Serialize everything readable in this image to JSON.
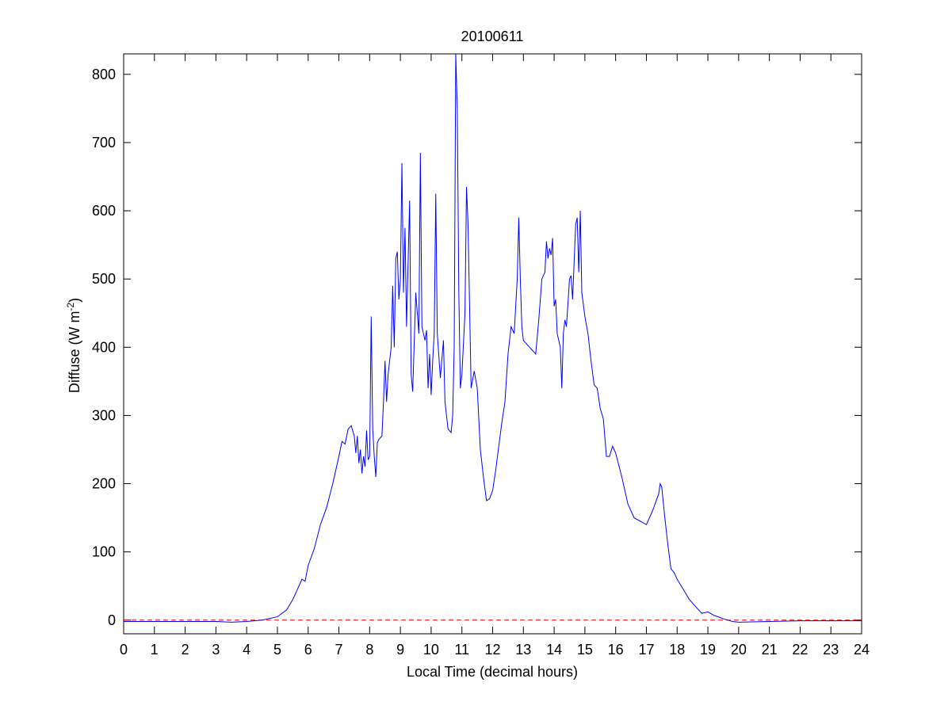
{
  "chart_data": {
    "type": "line",
    "title": "20100611",
    "xlabel": "Local Time (decimal hours)",
    "ylabel": {
      "text": "Diffuse (W m",
      "superscript": "-2",
      "suffix": ")"
    },
    "xlim": [
      0,
      24
    ],
    "ylim": [
      -20,
      830
    ],
    "xticks": [
      0,
      1,
      2,
      3,
      4,
      5,
      6,
      7,
      8,
      9,
      10,
      11,
      12,
      13,
      14,
      15,
      16,
      17,
      18,
      19,
      20,
      21,
      22,
      23,
      24
    ],
    "yticks": [
      0,
      100,
      200,
      300,
      400,
      500,
      600,
      700,
      800
    ],
    "reference_line": {
      "value": 0,
      "color": "#ff0000"
    },
    "x": [
      0,
      1,
      2,
      3,
      3.5,
      4,
      4.5,
      5,
      5.3,
      5.5,
      5.7,
      5.8,
      5.9,
      6,
      6.2,
      6.4,
      6.6,
      6.8,
      7,
      7.1,
      7.2,
      7.3,
      7.4,
      7.5,
      7.55,
      7.6,
      7.65,
      7.7,
      7.75,
      7.8,
      7.85,
      7.9,
      7.95,
      8,
      8.05,
      8.1,
      8.15,
      8.2,
      8.25,
      8.3,
      8.4,
      8.45,
      8.5,
      8.55,
      8.6,
      8.7,
      8.75,
      8.8,
      8.85,
      8.9,
      8.95,
      9,
      9.05,
      9.1,
      9.15,
      9.2,
      9.3,
      9.35,
      9.4,
      9.5,
      9.6,
      9.65,
      9.7,
      9.8,
      9.85,
      9.9,
      9.95,
      10,
      10.05,
      10.1,
      10.15,
      10.2,
      10.3,
      10.4,
      10.45,
      10.55,
      10.65,
      10.7,
      10.75,
      10.8,
      10.85,
      10.9,
      10.95,
      11,
      11.1,
      11.15,
      11.2,
      11.3,
      11.4,
      11.5,
      11.6,
      11.7,
      11.8,
      11.9,
      12,
      12.1,
      12.3,
      12.4,
      12.5,
      12.6,
      12.7,
      12.8,
      12.85,
      12.9,
      12.95,
      13,
      13.2,
      13.4,
      13.5,
      13.6,
      13.7,
      13.75,
      13.8,
      13.85,
      13.9,
      13.95,
      14,
      14.05,
      14.1,
      14.2,
      14.25,
      14.3,
      14.35,
      14.4,
      14.5,
      14.55,
      14.6,
      14.7,
      14.75,
      14.8,
      14.85,
      14.9,
      15,
      15.1,
      15.2,
      15.3,
      15.4,
      15.5,
      15.6,
      15.7,
      15.8,
      15.9,
      16,
      16.2,
      16.4,
      16.6,
      16.8,
      17,
      17.2,
      17.4,
      17.45,
      17.5,
      17.6,
      17.7,
      17.8,
      17.9,
      18,
      18.2,
      18.4,
      18.6,
      18.8,
      19,
      19.2,
      19.5,
      19.8,
      20,
      21,
      22,
      23,
      24
    ],
    "series": [
      {
        "color": "#0000ff",
        "values": [
          -2,
          -2,
          -2,
          -2,
          -3,
          -2,
          0,
          5,
          15,
          30,
          50,
          60,
          57,
          80,
          105,
          140,
          165,
          200,
          240,
          262,
          258,
          280,
          285,
          270,
          245,
          270,
          230,
          250,
          215,
          240,
          225,
          278,
          235,
          240,
          445,
          280,
          240,
          210,
          260,
          265,
          270,
          320,
          380,
          320,
          360,
          400,
          490,
          400,
          530,
          540,
          470,
          500,
          670,
          480,
          575,
          430,
          615,
          360,
          335,
          480,
          420,
          685,
          430,
          410,
          425,
          340,
          390,
          330,
          380,
          420,
          625,
          420,
          355,
          410,
          320,
          280,
          275,
          300,
          400,
          830,
          750,
          480,
          340,
          360,
          450,
          635,
          580,
          340,
          365,
          340,
          250,
          210,
          175,
          178,
          190,
          220,
          290,
          320,
          390,
          430,
          420,
          500,
          590,
          500,
          430,
          410,
          400,
          390,
          440,
          500,
          510,
          555,
          530,
          545,
          535,
          560,
          460,
          470,
          420,
          400,
          340,
          420,
          440,
          430,
          500,
          505,
          470,
          580,
          590,
          510,
          600,
          480,
          445,
          420,
          380,
          345,
          340,
          310,
          295,
          240,
          240,
          255,
          245,
          210,
          170,
          150,
          145,
          140,
          160,
          185,
          200,
          195,
          150,
          110,
          75,
          70,
          60,
          45,
          30,
          20,
          10,
          12,
          7,
          2,
          -2,
          -3,
          -2,
          -1,
          -1,
          -1
        ]
      }
    ]
  }
}
